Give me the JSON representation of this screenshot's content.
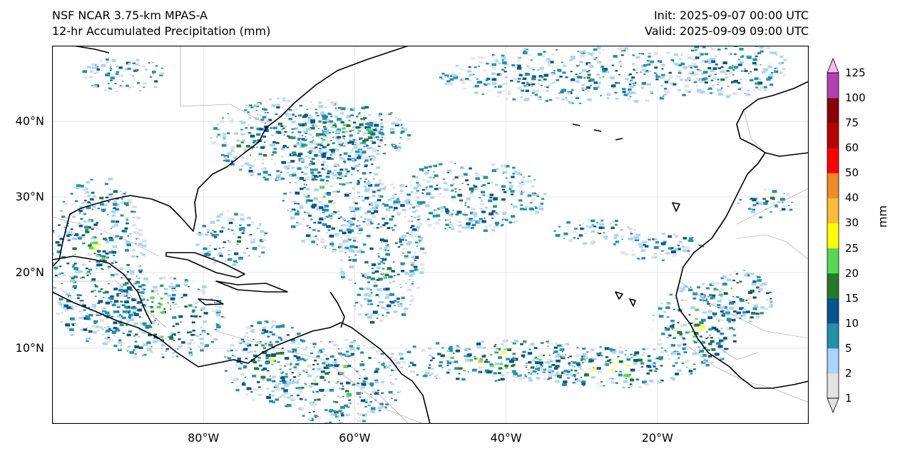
{
  "header": {
    "model": "NSF NCAR 3.75-km MPAS-A",
    "field": "12-hr Accumulated Precipitation (mm)",
    "init": "Init: 2025-09-07 00:00 UTC",
    "valid": "Valid: 2025-09-09 09:00 UTC"
  },
  "map": {
    "lon_range": [
      -100,
      0
    ],
    "lat_range": [
      0,
      50
    ],
    "lat_ticks": [
      {
        "value": 10,
        "label": "10°N"
      },
      {
        "value": 20,
        "label": "20°N"
      },
      {
        "value": 30,
        "label": "30°N"
      },
      {
        "value": 40,
        "label": "40°N"
      }
    ],
    "lon_ticks": [
      {
        "value": -80,
        "label": "80°W"
      },
      {
        "value": -60,
        "label": "60°W"
      },
      {
        "value": -40,
        "label": "40°W"
      },
      {
        "value": -20,
        "label": "20°W"
      }
    ],
    "gridlines": true,
    "colors": {
      "coast": "#000000",
      "borders": "#9a9a9a",
      "grid": "#e6e6e6"
    }
  },
  "colorbar": {
    "unit": "mm",
    "levels": [
      "1",
      "2",
      "5",
      "10",
      "15",
      "20",
      "25",
      "30",
      "40",
      "50",
      "60",
      "75",
      "100",
      "125"
    ],
    "colors": [
      "#e2e2e2",
      "#a9d4fd",
      "#2291a9",
      "#06558f",
      "#247b27",
      "#58d758",
      "#ffff00",
      "#fbbd37",
      "#ef8c27",
      "#fe0000",
      "#b90000",
      "#8b0000",
      "#b440b4",
      "#fcb6f7"
    ],
    "extend": "both"
  }
}
